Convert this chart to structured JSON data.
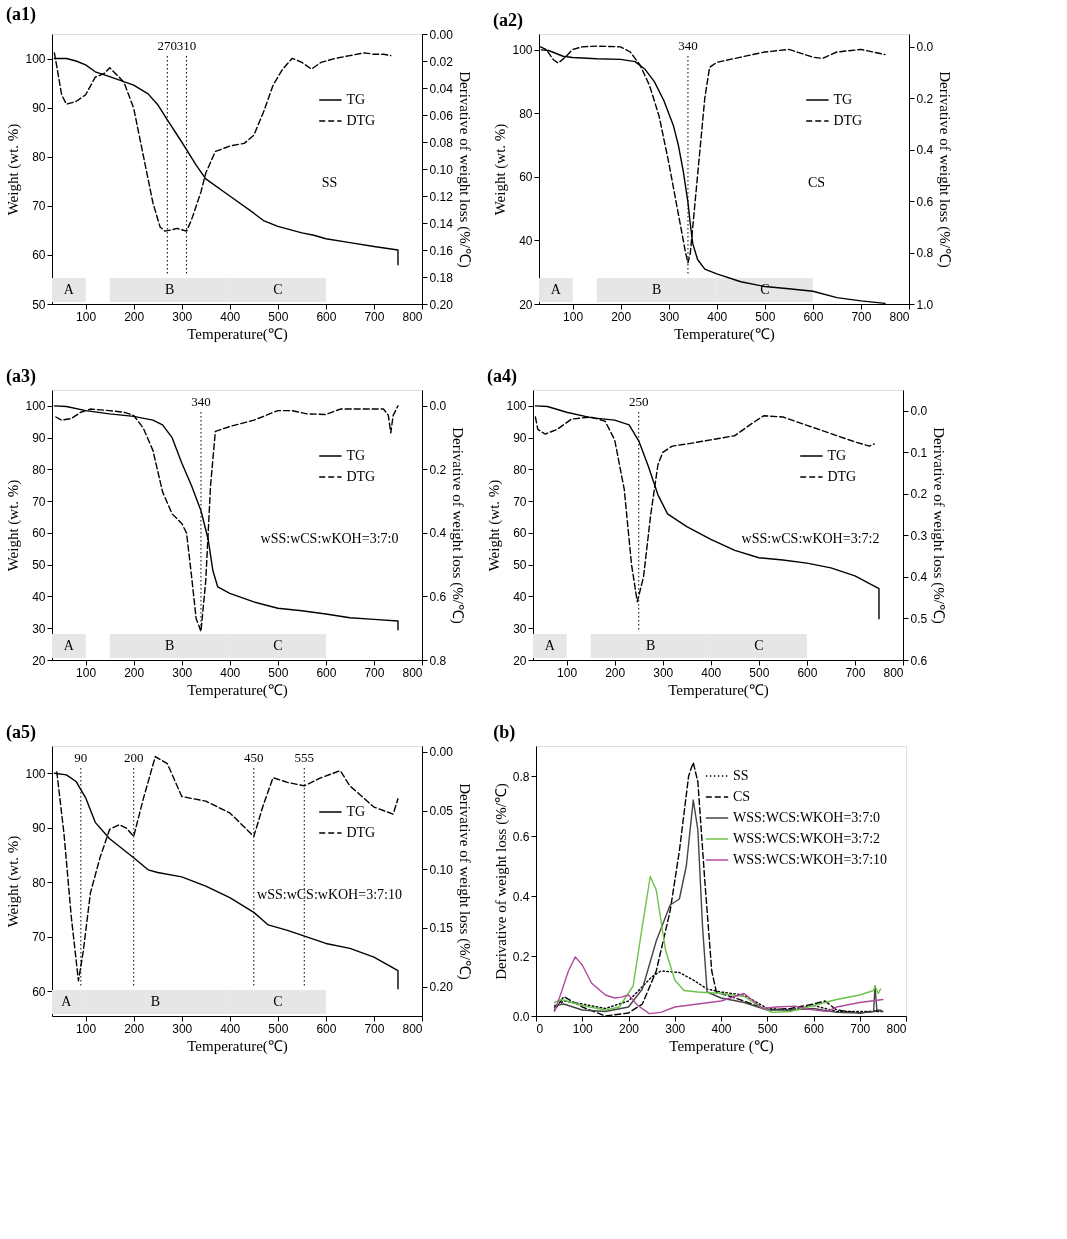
{
  "chart_data": [
    {
      "type": "line",
      "title": "(a1)",
      "xlabel": "Temperature(℃)",
      "ylabel": "Weight (wt. %)",
      "y2label": "Derivative of weight loss (%/℃)",
      "xlim": [
        30,
        800
      ],
      "xticks": [
        100,
        200,
        300,
        400,
        500,
        600,
        700,
        800
      ],
      "ylim": [
        50,
        105
      ],
      "yticks": [
        50,
        60,
        70,
        80,
        90,
        100
      ],
      "y2lim": [
        0.2,
        0
      ],
      "y2ticks": [
        {
          "value": 0,
          "label": "0.00"
        },
        0.02,
        0.04,
        0.06,
        0.08,
        {
          "value": 0.1,
          "label": "0.10"
        },
        0.12,
        0.14,
        0.16,
        0.18,
        {
          "value": 0.2,
          "label": "0.20"
        }
      ],
      "legend": "right",
      "annotations": [
        "SS"
      ],
      "ref_lines": [
        {
          "axis": "x",
          "value": 270,
          "label": "270",
          "line_style": "dotted"
        },
        {
          "axis": "x",
          "value": 310,
          "label": "310",
          "line_style": "dotted"
        }
      ],
      "bands": [
        {
          "axis": "x",
          "from": 30,
          "to": 100,
          "label": "A"
        },
        {
          "axis": "x",
          "from": 150,
          "to": 400,
          "label": "B"
        },
        {
          "axis": "x",
          "from": 400,
          "to": 600,
          "label": "C"
        }
      ],
      "series": [
        {
          "name": "TG",
          "color": "#000000",
          "line_style": "solid",
          "x": [
            35,
            60,
            80,
            100,
            120,
            150,
            200,
            230,
            250,
            270,
            300,
            330,
            350,
            400,
            450,
            470,
            500,
            550,
            575,
            600,
            650,
            700,
            750,
            750
          ],
          "values": [
            100,
            100,
            99.5,
            98.7,
            97.3,
            96.3,
            94.6,
            92.8,
            90.6,
            87.5,
            83,
            78.3,
            75.5,
            72,
            68.5,
            67,
            65.8,
            64.5,
            64,
            63.3,
            62.5,
            61.7,
            61,
            58
          ]
        },
        {
          "name": "DTG",
          "color": "#000000",
          "line_style": "dashed",
          "axis": "y2",
          "x": [
            35,
            40,
            50,
            60,
            80,
            100,
            120,
            140,
            150,
            170,
            180,
            200,
            220,
            240,
            255,
            265,
            280,
            290,
            300,
            310,
            320,
            340,
            350,
            370,
            400,
            430,
            450,
            470,
            490,
            510,
            530,
            550,
            570,
            590,
            620,
            650,
            680,
            700,
            720,
            735
          ],
          "values": [
            0.014,
            0.024,
            0.045,
            0.052,
            0.05,
            0.045,
            0.032,
            0.029,
            0.025,
            0.032,
            0.036,
            0.055,
            0.09,
            0.125,
            0.143,
            0.146,
            0.145,
            0.144,
            0.145,
            0.146,
            0.138,
            0.117,
            0.103,
            0.087,
            0.083,
            0.081,
            0.075,
            0.058,
            0.038,
            0.026,
            0.018,
            0.021,
            0.026,
            0.021,
            0.018,
            0.016,
            0.014,
            0.015,
            0.015,
            0.016
          ]
        }
      ]
    },
    {
      "type": "line",
      "title": "(a2)",
      "xlabel": "Temperature(℃)",
      "ylabel": "Weight (wt. %)",
      "y2label": "Derivative of weight loss (%/℃)",
      "xlim": [
        30,
        800
      ],
      "xticks": [
        100,
        200,
        300,
        400,
        500,
        600,
        700,
        800
      ],
      "ylim": [
        20,
        105
      ],
      "yticks": [
        20,
        40,
        60,
        80,
        100
      ],
      "y2lim": [
        1.0,
        -0.05
      ],
      "y2ticks": [
        {
          "value": 0,
          "label": "0.0"
        },
        0.2,
        0.4,
        0.6,
        0.8,
        {
          "value": 1.0,
          "label": "1.0"
        }
      ],
      "legend": "right",
      "annotations": [
        "CS"
      ],
      "ref_lines": [
        {
          "axis": "x",
          "value": 340,
          "label": "340",
          "line_style": "dotted"
        }
      ],
      "bands": [
        {
          "axis": "x",
          "from": 30,
          "to": 100,
          "label": "A"
        },
        {
          "axis": "x",
          "from": 150,
          "to": 400,
          "label": "B"
        },
        {
          "axis": "x",
          "from": 400,
          "to": 600,
          "label": "C"
        }
      ],
      "series": [
        {
          "name": "TG",
          "color": "#000000",
          "line_style": "solid",
          "x": [
            35,
            50,
            80,
            100,
            150,
            200,
            230,
            250,
            270,
            290,
            310,
            320,
            330,
            340,
            345,
            350,
            360,
            375,
            400,
            450,
            500,
            550,
            600,
            650,
            700,
            750
          ],
          "values": [
            100,
            99.8,
            98,
            97.6,
            97.2,
            97,
            96.3,
            94,
            90,
            84,
            76,
            70,
            62,
            52,
            45,
            39,
            34,
            31,
            29.5,
            27,
            25.5,
            24.8,
            24,
            22,
            21,
            20.2
          ]
        },
        {
          "name": "DTG",
          "color": "#000000",
          "line_style": "dashed",
          "axis": "y2",
          "x": [
            33,
            45,
            60,
            70,
            85,
            100,
            120,
            150,
            200,
            220,
            240,
            260,
            280,
            300,
            320,
            335,
            340,
            345,
            355,
            365,
            375,
            385,
            400,
            450,
            500,
            550,
            600,
            620,
            650,
            700,
            750
          ],
          "values": [
            0.0,
            0.01,
            0.05,
            0.063,
            0.04,
            0.01,
            0.0,
            -0.003,
            0.0,
            0.02,
            0.07,
            0.15,
            0.27,
            0.45,
            0.65,
            0.8,
            0.84,
            0.8,
            0.6,
            0.4,
            0.2,
            0.08,
            0.06,
            0.04,
            0.02,
            0.01,
            0.04,
            0.045,
            0.02,
            0.01,
            0.03
          ]
        }
      ]
    },
    {
      "type": "line",
      "title": "(a3)",
      "xlabel": "Temperature(℃)",
      "ylabel": "Weight (wt. %)",
      "y2label": "Derivative of weight loss (%/℃)",
      "xlim": [
        30,
        800
      ],
      "xticks": [
        100,
        200,
        300,
        400,
        500,
        600,
        700,
        800
      ],
      "ylim": [
        20,
        105
      ],
      "yticks": [
        20,
        30,
        40,
        50,
        60,
        70,
        80,
        90,
        100
      ],
      "y2lim": [
        0.8,
        -0.05
      ],
      "y2ticks": [
        {
          "value": 0,
          "label": "0.0"
        },
        0.2,
        0.4,
        0.6,
        0.8
      ],
      "legend": "right",
      "annotations": [
        "wSS:wCS:wKOH=3:7:0"
      ],
      "ref_lines": [
        {
          "axis": "x",
          "value": 340,
          "label": "340",
          "line_style": "dotted"
        }
      ],
      "bands": [
        {
          "axis": "x",
          "from": 30,
          "to": 100,
          "label": "A"
        },
        {
          "axis": "x",
          "from": 150,
          "to": 400,
          "label": "B"
        },
        {
          "axis": "x",
          "from": 400,
          "to": 600,
          "label": "C"
        }
      ],
      "series": [
        {
          "name": "TG",
          "color": "#000000",
          "line_style": "solid",
          "x": [
            35,
            60,
            100,
            150,
            200,
            240,
            260,
            280,
            300,
            320,
            340,
            355,
            365,
            375,
            400,
            450,
            500,
            550,
            600,
            650,
            700,
            750,
            750
          ],
          "values": [
            100,
            99.8,
            98.5,
            97.5,
            96.7,
            95.5,
            94,
            90,
            82,
            75,
            67,
            58,
            48,
            43,
            41,
            38.3,
            36.3,
            35.5,
            34.5,
            33.3,
            32.8,
            32.3,
            29.5
          ]
        },
        {
          "name": "DTG",
          "color": "#000000",
          "line_style": "dashed",
          "axis": "y2",
          "x": [
            38,
            50,
            70,
            90,
            110,
            150,
            180,
            200,
            220,
            240,
            260,
            280,
            300,
            310,
            320,
            330,
            340,
            350,
            360,
            370,
            400,
            450,
            500,
            530,
            560,
            600,
            630,
            680,
            720,
            730,
            735,
            740,
            750
          ],
          "values": [
            0.035,
            0.045,
            0.04,
            0.02,
            0.01,
            0.015,
            0.02,
            0.03,
            0.07,
            0.14,
            0.27,
            0.34,
            0.37,
            0.4,
            0.53,
            0.67,
            0.71,
            0.55,
            0.25,
            0.08,
            0.065,
            0.045,
            0.015,
            0.015,
            0.025,
            0.027,
            0.01,
            0.01,
            0.01,
            0.03,
            0.085,
            0.03,
            0.0
          ]
        }
      ]
    },
    {
      "type": "line",
      "title": "(a4)",
      "xlabel": "Temperature(℃)",
      "ylabel": "Weight (wt. %)",
      "y2label": "Derivative of weight loss (%/℃)",
      "xlim": [
        30,
        800
      ],
      "xticks": [
        100,
        200,
        300,
        400,
        500,
        600,
        700,
        800
      ],
      "ylim": [
        20,
        105
      ],
      "yticks": [
        20,
        30,
        40,
        50,
        60,
        70,
        80,
        90,
        100
      ],
      "y2lim": [
        0.6,
        -0.05
      ],
      "y2ticks": [
        {
          "value": 0,
          "label": "0.0"
        },
        0.1,
        0.2,
        0.3,
        0.4,
        0.5,
        0.6
      ],
      "legend": "right",
      "annotations": [
        "wSS:wCS:wKOH=3:7:2"
      ],
      "ref_lines": [
        {
          "axis": "x",
          "value": 250,
          "label": "250",
          "line_style": "dotted"
        }
      ],
      "bands": [
        {
          "axis": "x",
          "from": 30,
          "to": 100,
          "label": "A"
        },
        {
          "axis": "x",
          "from": 150,
          "to": 400,
          "label": "B"
        },
        {
          "axis": "x",
          "from": 400,
          "to": 600,
          "label": "C"
        }
      ],
      "series": [
        {
          "name": "TG",
          "color": "#000000",
          "line_style": "solid",
          "x": [
            35,
            60,
            100,
            150,
            200,
            230,
            250,
            270,
            290,
            310,
            350,
            400,
            450,
            500,
            550,
            600,
            650,
            700,
            750,
            750
          ],
          "values": [
            100,
            99.8,
            98,
            96.3,
            95.5,
            94,
            89,
            81,
            72,
            66,
            62,
            58,
            54.5,
            52.2,
            51.5,
            50.5,
            49,
            46.5,
            42.5,
            33
          ]
        },
        {
          "name": "DTG",
          "color": "#000000",
          "line_style": "dashed",
          "axis": "y2",
          "x": [
            35,
            40,
            55,
            80,
            110,
            150,
            180,
            200,
            220,
            235,
            247,
            260,
            275,
            290,
            300,
            320,
            350,
            400,
            450,
            480,
            510,
            550,
            600,
            650,
            700,
            730,
            740
          ],
          "values": [
            0.015,
            0.045,
            0.056,
            0.045,
            0.02,
            0.015,
            0.025,
            0.07,
            0.19,
            0.37,
            0.46,
            0.4,
            0.25,
            0.13,
            0.1,
            0.085,
            0.08,
            0.07,
            0.06,
            0.035,
            0.012,
            0.015,
            0.035,
            0.055,
            0.075,
            0.085,
            0.08
          ]
        }
      ]
    },
    {
      "type": "line",
      "title": "(a5)",
      "xlabel": "Temperature(℃)",
      "ylabel": "Weight (wt. %)",
      "y2label": "Derivative of weight loss (%/℃)",
      "xlim": [
        30,
        800
      ],
      "xticks": [
        100,
        200,
        300,
        400,
        500,
        600,
        700,
        800
      ],
      "ylim": [
        55.5,
        105
      ],
      "yticks": [
        60,
        70,
        80,
        90,
        100
      ],
      "y2lim": [
        0.225,
        -0.005
      ],
      "y2ticks": [
        {
          "value": 0,
          "label": "0.00"
        },
        {
          "value": 0.05,
          "label": "0.05"
        },
        {
          "value": 0.1,
          "label": "0.10"
        },
        {
          "value": 0.15,
          "label": "0.15"
        },
        {
          "value": 0.2,
          "label": "0.20"
        }
      ],
      "legend": "right",
      "annotations": [
        "wSS:wCS:wKOH=3:7:10"
      ],
      "ref_lines": [
        {
          "axis": "x",
          "value": 90,
          "label": "90",
          "line_style": "dotted"
        },
        {
          "axis": "x",
          "value": 200,
          "label": "200",
          "line_style": "dotted"
        },
        {
          "axis": "x",
          "value": 450,
          "label": "450",
          "line_style": "dotted"
        },
        {
          "axis": "x",
          "value": 555,
          "label": "555",
          "line_style": "dotted"
        }
      ],
      "bands": [
        {
          "axis": "x",
          "from": 30,
          "to": 90,
          "label": "A"
        },
        {
          "axis": "x",
          "from": 90,
          "to": 400,
          "label": "B"
        },
        {
          "axis": "x",
          "from": 400,
          "to": 600,
          "label": "C"
        }
      ],
      "series": [
        {
          "name": "TG",
          "color": "#000000",
          "line_style": "solid",
          "x": [
            35,
            60,
            80,
            100,
            120,
            150,
            200,
            230,
            250,
            300,
            350,
            400,
            450,
            480,
            520,
            600,
            650,
            700,
            750,
            750
          ],
          "values": [
            100,
            99.7,
            98.5,
            95.5,
            91,
            88,
            84.5,
            82.3,
            81.8,
            81,
            79.3,
            77.2,
            74.5,
            72.2,
            71.2,
            68.8,
            67.9,
            66.3,
            63.8,
            60.5
          ]
        },
        {
          "name": "DTG",
          "color": "#000000",
          "line_style": "dashed",
          "axis": "y2",
          "x": [
            40,
            55,
            70,
            85,
            95,
            110,
            130,
            150,
            170,
            185,
            200,
            220,
            245,
            270,
            300,
            350,
            400,
            440,
            450,
            470,
            490,
            520,
            555,
            590,
            630,
            650,
            700,
            740,
            750
          ],
          "values": [
            0.017,
            0.07,
            0.14,
            0.195,
            0.17,
            0.12,
            0.09,
            0.066,
            0.062,
            0.065,
            0.072,
            0.04,
            0.004,
            0.01,
            0.038,
            0.042,
            0.052,
            0.068,
            0.072,
            0.045,
            0.022,
            0.026,
            0.029,
            0.022,
            0.016,
            0.029,
            0.047,
            0.053,
            0.04
          ]
        }
      ]
    },
    {
      "type": "line",
      "title": "(b)",
      "xlabel": "Temperature (℃)",
      "ylabel": "Derivative of weight loss (%/℃)",
      "xlim": [
        0,
        800
      ],
      "xticks": [
        0,
        100,
        200,
        300,
        400,
        500,
        600,
        700,
        800
      ],
      "ylim": [
        0,
        0.9
      ],
      "yticks": [
        {
          "value": 0,
          "label": "0.0"
        },
        0.2,
        0.4,
        0.6,
        0.8
      ],
      "legend": "top right",
      "series": [
        {
          "name": "SS",
          "color": "#000000",
          "line_style": "dotted",
          "x": [
            40,
            60,
            100,
            150,
            200,
            250,
            270,
            310,
            340,
            370,
            400,
            450,
            500,
            550,
            600,
            650,
            700,
            750
          ],
          "values": [
            0.03,
            0.05,
            0.04,
            0.025,
            0.05,
            0.13,
            0.15,
            0.145,
            0.12,
            0.09,
            0.08,
            0.07,
            0.025,
            0.02,
            0.035,
            0.015,
            0.015,
            0.015
          ]
        },
        {
          "name": "CS",
          "color": "#000000",
          "line_style": "dashed",
          "x": [
            40,
            60,
            100,
            150,
            200,
            230,
            260,
            290,
            310,
            330,
            340,
            350,
            365,
            380,
            390,
            450,
            500,
            550,
            600,
            625,
            650,
            700,
            750
          ],
          "values": [
            0.02,
            0.065,
            0.03,
            0.0,
            0.01,
            0.04,
            0.15,
            0.35,
            0.55,
            0.8,
            0.845,
            0.78,
            0.45,
            0.15,
            0.08,
            0.05,
            0.02,
            0.025,
            0.04,
            0.05,
            0.02,
            0.01,
            0.02
          ]
        },
        {
          "name": "WSS:WCS:WKOH=3:7:0",
          "color": "#444444",
          "line_style": "solid",
          "x": [
            40,
            60,
            100,
            150,
            200,
            230,
            260,
            290,
            310,
            325,
            340,
            350,
            360,
            370,
            400,
            450,
            500,
            550,
            600,
            650,
            700,
            730,
            733,
            737,
            750
          ],
          "values": [
            0.035,
            0.04,
            0.02,
            0.015,
            0.03,
            0.09,
            0.25,
            0.37,
            0.39,
            0.5,
            0.72,
            0.62,
            0.3,
            0.08,
            0.06,
            0.045,
            0.02,
            0.02,
            0.025,
            0.012,
            0.01,
            0.015,
            0.1,
            0.02,
            0.015
          ]
        },
        {
          "name": "WSS:WCS:WKOH=3:7:2",
          "color": "#6cc24a",
          "line_style": "solid",
          "x": [
            40,
            55,
            100,
            150,
            180,
            210,
            230,
            247,
            260,
            280,
            300,
            320,
            350,
            400,
            450,
            480,
            510,
            550,
            600,
            650,
            700,
            730,
            733,
            740,
            745
          ],
          "values": [
            0.045,
            0.055,
            0.035,
            0.02,
            0.03,
            0.1,
            0.3,
            0.465,
            0.42,
            0.22,
            0.12,
            0.085,
            0.08,
            0.075,
            0.065,
            0.035,
            0.012,
            0.015,
            0.035,
            0.055,
            0.07,
            0.085,
            0.1,
            0.075,
            0.09
          ]
        },
        {
          "name": "WSS:WCS:WKOH=3:7:10",
          "color": "#b24a9f",
          "line_style": "solid",
          "x": [
            40,
            55,
            70,
            85,
            100,
            120,
            150,
            170,
            185,
            200,
            220,
            245,
            270,
            300,
            350,
            400,
            440,
            450,
            470,
            490,
            520,
            560,
            590,
            630,
            650,
            700,
            750
          ],
          "values": [
            0.015,
            0.08,
            0.15,
            0.197,
            0.17,
            0.11,
            0.07,
            0.06,
            0.063,
            0.07,
            0.035,
            0.008,
            0.012,
            0.03,
            0.04,
            0.05,
            0.07,
            0.075,
            0.05,
            0.025,
            0.03,
            0.033,
            0.022,
            0.015,
            0.03,
            0.045,
            0.055
          ]
        }
      ]
    }
  ]
}
